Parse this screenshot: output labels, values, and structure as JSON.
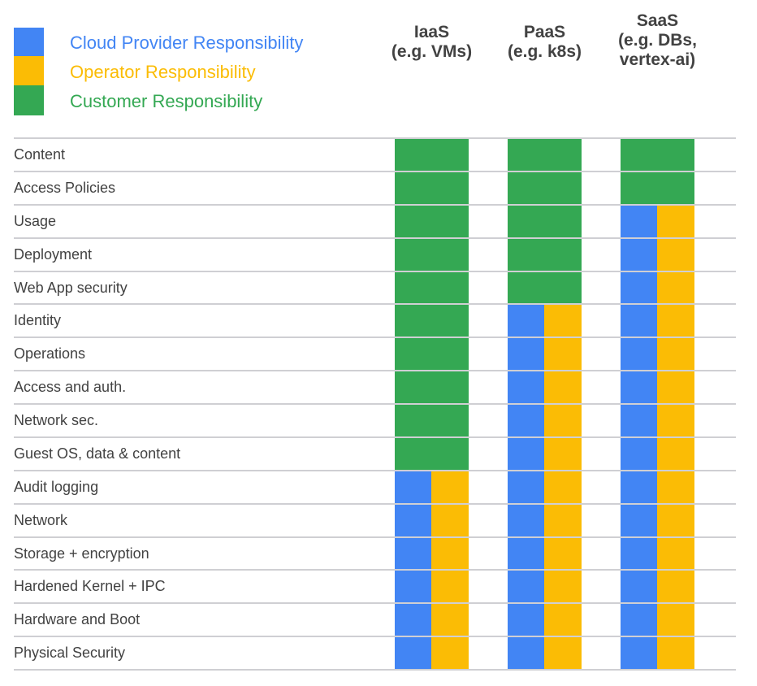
{
  "colors": {
    "provider": "#4285F4",
    "operator": "#FBBC05",
    "customer": "#34A853"
  },
  "legend": [
    {
      "label": "Cloud Provider Responsibility",
      "key": "provider"
    },
    {
      "label": "Operator Responsibility",
      "key": "operator"
    },
    {
      "label": "Customer Responsibility",
      "key": "customer"
    }
  ],
  "rows": [
    "Content",
    "Access Policies",
    "Usage",
    "Deployment",
    "Web App security",
    "Identity",
    "Operations",
    "Access and auth.",
    "Network sec.",
    "Guest OS, data & content",
    "Audit logging",
    "Network",
    "Storage + encryption",
    "Hardened Kernel + IPC",
    "Hardware and Boot",
    "Physical Security"
  ],
  "columns": [
    {
      "header": "IaaS\n(e.g. VMs)",
      "customer_rows": 10
    },
    {
      "header": "PaaS\n(e.g. k8s)",
      "customer_rows": 5
    },
    {
      "header": "SaaS\n(e.g. DBs,\nvertex-ai)",
      "customer_rows": 2
    }
  ]
}
